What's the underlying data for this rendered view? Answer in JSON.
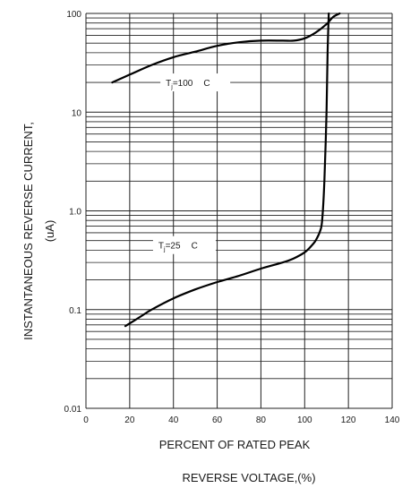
{
  "chart_data": {
    "type": "line",
    "xlabel_line1": "PERCENT OF RATED PEAK",
    "xlabel_line2": "REVERSE VOLTAGE,(%)",
    "ylabel_line1": "INSTANTANEOUS REVERSE CURRENT,",
    "ylabel_line2": "(uA)",
    "xlim": [
      0,
      140
    ],
    "ylim": [
      0.01,
      100
    ],
    "yscale": "log",
    "grid": true,
    "x_ticks": [
      {
        "value": 0,
        "label": "0"
      },
      {
        "value": 20,
        "label": "20"
      },
      {
        "value": 40,
        "label": "40"
      },
      {
        "value": 60,
        "label": "60"
      },
      {
        "value": 80,
        "label": "80"
      },
      {
        "value": 100,
        "label": "100"
      },
      {
        "value": 120,
        "label": "120"
      },
      {
        "value": 140,
        "label": "140"
      }
    ],
    "y_ticks": [
      {
        "value": 0.01,
        "label": "0.01"
      },
      {
        "value": 0.1,
        "label": "0.1"
      },
      {
        "value": 1,
        "label": "1.0"
      },
      {
        "value": 10,
        "label": "10"
      },
      {
        "value": 100,
        "label": "100"
      }
    ],
    "series": [
      {
        "label_prefix": "T",
        "label_sub": "j",
        "label_suffix": "=100",
        "label_unit": "C",
        "label_at": {
          "x": 50,
          "y": 20
        },
        "x": [
          12,
          20,
          30,
          40,
          50,
          60,
          70,
          80,
          90,
          95,
          100,
          105,
          110,
          113,
          116
        ],
        "y": [
          20,
          24,
          30,
          36,
          41,
          47,
          51,
          53,
          53,
          53,
          56,
          64,
          78,
          92,
          100
        ]
      },
      {
        "label_prefix": "T",
        "label_sub": "j",
        "label_suffix": "=25",
        "label_unit": "C",
        "label_at": {
          "x": 45,
          "y": 0.45
        },
        "x": [
          18,
          25,
          30,
          40,
          50,
          60,
          70,
          80,
          90,
          95,
          100,
          103,
          105,
          107,
          108,
          109,
          110,
          110.5,
          111
        ],
        "y": [
          0.068,
          0.085,
          0.1,
          0.13,
          0.16,
          0.19,
          0.22,
          0.26,
          0.3,
          0.33,
          0.38,
          0.44,
          0.5,
          0.62,
          0.8,
          2,
          10,
          40,
          100
        ]
      }
    ]
  }
}
